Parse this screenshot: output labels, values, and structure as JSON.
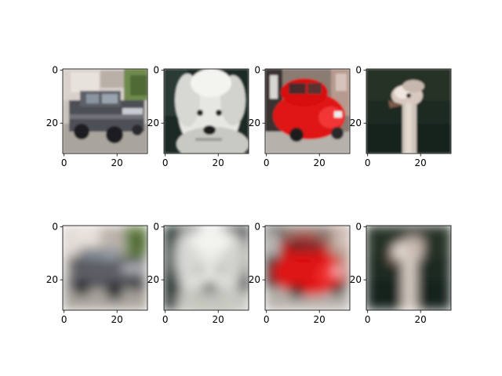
{
  "figure": {
    "grid": {
      "rows": 2,
      "cols": 4
    },
    "axes": {
      "x_ticks": [
        "0",
        "20"
      ],
      "y_ticks": [
        "0",
        "20"
      ],
      "x_tick_values": [
        0,
        20
      ],
      "y_tick_values": [
        0,
        20
      ],
      "extent": [
        0,
        32
      ]
    },
    "panels": [
      {
        "id": "original-car-gray",
        "row": 0,
        "col": 0,
        "subject": "car-photo-gray",
        "blurred": false
      },
      {
        "id": "original-dog-white",
        "row": 0,
        "col": 1,
        "subject": "dog-photo-white",
        "blurred": false
      },
      {
        "id": "original-car-red",
        "row": 0,
        "col": 2,
        "subject": "car-photo-red",
        "blurred": false
      },
      {
        "id": "original-ostrich",
        "row": 0,
        "col": 3,
        "subject": "ostrich-photo",
        "blurred": false
      },
      {
        "id": "reconstruction-car-gray",
        "row": 1,
        "col": 0,
        "subject": "car-photo-gray",
        "blurred": true
      },
      {
        "id": "reconstruction-dog-white",
        "row": 1,
        "col": 1,
        "subject": "dog-photo-white",
        "blurred": true
      },
      {
        "id": "reconstruction-car-red",
        "row": 1,
        "col": 2,
        "subject": "car-photo-red",
        "blurred": true
      },
      {
        "id": "reconstruction-ostrich",
        "row": 1,
        "col": 3,
        "subject": "ostrich-photo",
        "blurred": true
      }
    ]
  }
}
